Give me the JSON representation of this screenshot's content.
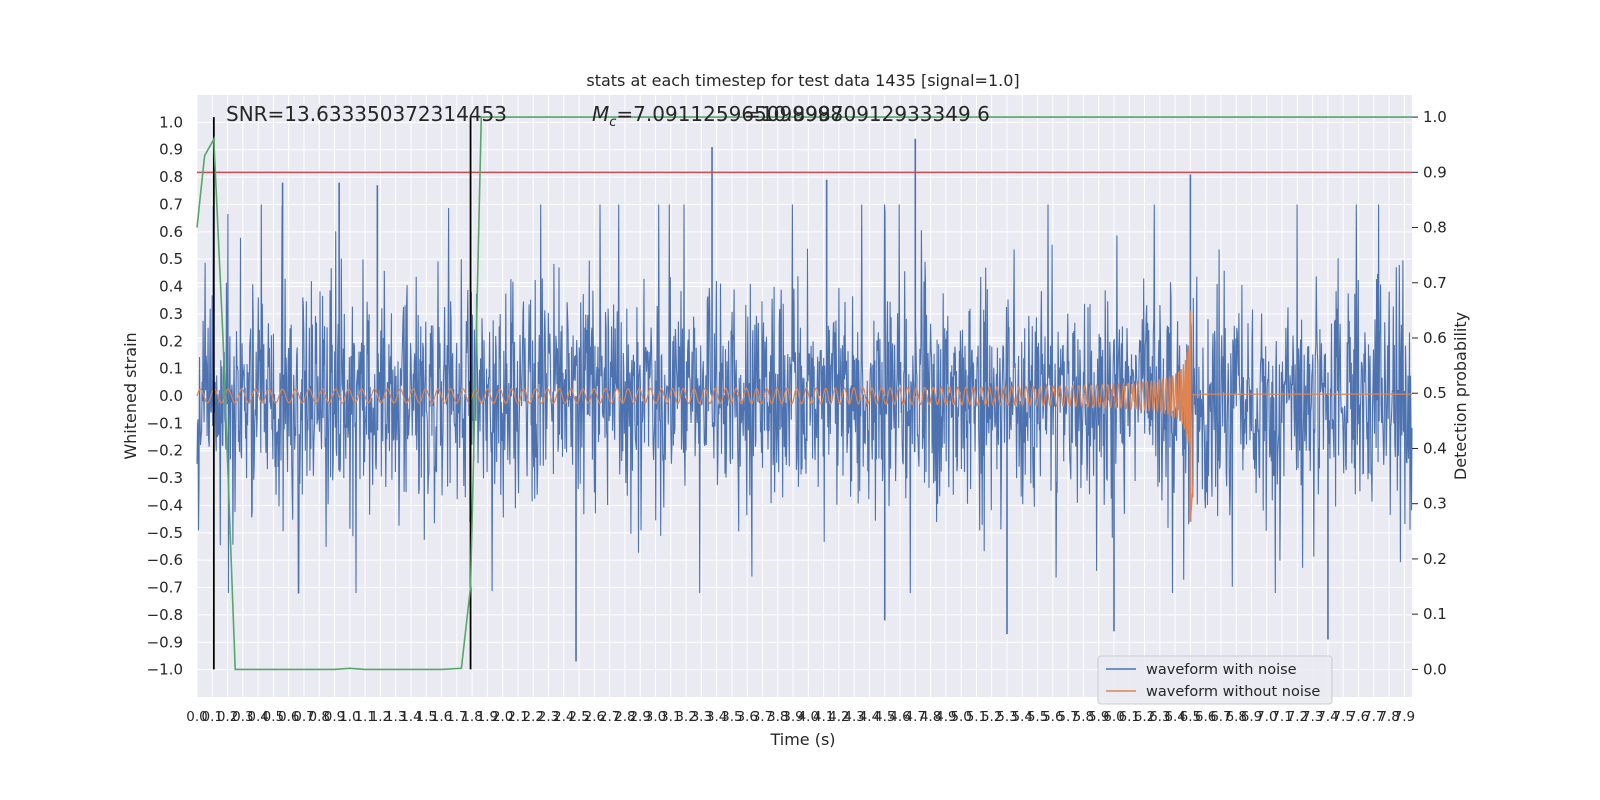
{
  "chart_data": {
    "type": "line",
    "title": "stats at each timestep for test data 1435 [signal=1.0]",
    "xlabel": "Time (s)",
    "ylabel": "Whitened strain",
    "y2label": "Detection probability",
    "xlim": [
      0.0,
      7.95
    ],
    "ylim": [
      -1.1,
      1.1
    ],
    "y2lim": [
      -0.05,
      1.04
    ],
    "x_ticks": [
      0.0,
      0.1,
      0.2,
      0.3,
      0.4,
      0.5,
      0.6,
      0.7,
      0.8,
      0.9,
      1.0,
      1.1,
      1.2,
      1.3,
      1.4,
      1.5,
      1.6,
      1.7,
      1.8,
      1.9,
      2.0,
      2.1,
      2.2,
      2.3,
      2.4,
      2.5,
      2.6,
      2.7,
      2.8,
      2.9,
      3.0,
      3.1,
      3.2,
      3.3,
      3.4,
      3.5,
      3.6,
      3.7,
      3.8,
      3.9,
      4.0,
      4.1,
      4.2,
      4.3,
      4.4,
      4.5,
      4.6,
      4.7,
      4.8,
      4.9,
      5.0,
      5.1,
      5.2,
      5.3,
      5.4,
      5.5,
      5.6,
      5.7,
      5.8,
      5.9,
      6.0,
      6.1,
      6.2,
      6.3,
      6.4,
      6.5,
      6.6,
      6.7,
      6.8,
      6.9,
      7.0,
      7.1,
      7.2,
      7.3,
      7.4,
      7.5,
      7.6,
      7.7,
      7.8,
      7.9
    ],
    "y_ticks": [
      -1.0,
      -0.9,
      -0.8,
      -0.7,
      -0.6,
      -0.5,
      -0.4,
      -0.3,
      -0.2,
      -0.1,
      0.0,
      0.1,
      0.2,
      0.3,
      0.4,
      0.5,
      0.6,
      0.7,
      0.8,
      0.9,
      1.0
    ],
    "y2_ticks": [
      0.0,
      0.1,
      0.2,
      0.3,
      0.4,
      0.5,
      0.6,
      0.7,
      0.8,
      0.9,
      1.0
    ],
    "annotations": {
      "snr": "SNR=13.633350372314453",
      "mc": "=7.091125965099998",
      "mc_symbol": "M",
      "mc_sub": "c",
      "overlap_text": "=10.89870912933349 6"
    },
    "threshold": {
      "value": 0.9,
      "axis": "y2",
      "color": "#c44e52"
    },
    "vlines": [
      0.11,
      1.79
    ],
    "series": [
      {
        "name": "waveform with noise",
        "color": "#4c72b0",
        "axis": "y",
        "description": "dense noisy strain, envelope approx ±0.5 with spikes",
        "spikes": [
          [
            0.56,
            0.78
          ],
          [
            0.93,
            0.78
          ],
          [
            1.18,
            0.77
          ],
          [
            3.37,
            0.91
          ],
          [
            4.12,
            0.79
          ],
          [
            4.7,
            0.94
          ],
          [
            6.5,
            0.81
          ],
          [
            2.48,
            -0.97
          ],
          [
            5.3,
            -0.87
          ],
          [
            6.0,
            -0.86
          ],
          [
            7.4,
            -0.89
          ],
          [
            4.5,
            -0.82
          ]
        ]
      },
      {
        "name": "waveform without noise",
        "color": "#dd8452",
        "axis": "y",
        "chirp": {
          "start_amp": 0.02,
          "merger_time": 6.5,
          "peak_amp": 0.31,
          "min_amp": -0.46,
          "ringdown_end": 6.56,
          "post_amp": 0.0
        }
      },
      {
        "name": "detection probability",
        "color": "#55a868",
        "axis": "y2",
        "x": [
          0.0,
          0.05,
          0.11,
          0.17,
          0.25,
          0.35,
          0.6,
          0.9,
          1.0,
          1.1,
          1.4,
          1.6,
          1.73,
          1.79,
          1.86,
          2.0,
          3.0,
          5.0,
          7.95
        ],
        "y": [
          0.8,
          0.93,
          0.96,
          0.6,
          0.0,
          0.0,
          0.0,
          0.0,
          0.002,
          0.0,
          0.0,
          0.0,
          0.002,
          0.15,
          1.0,
          1.0,
          1.0,
          1.0,
          1.0
        ]
      }
    ],
    "legend": [
      "waveform with noise",
      "waveform without noise"
    ],
    "legend_position": "lower-right"
  }
}
